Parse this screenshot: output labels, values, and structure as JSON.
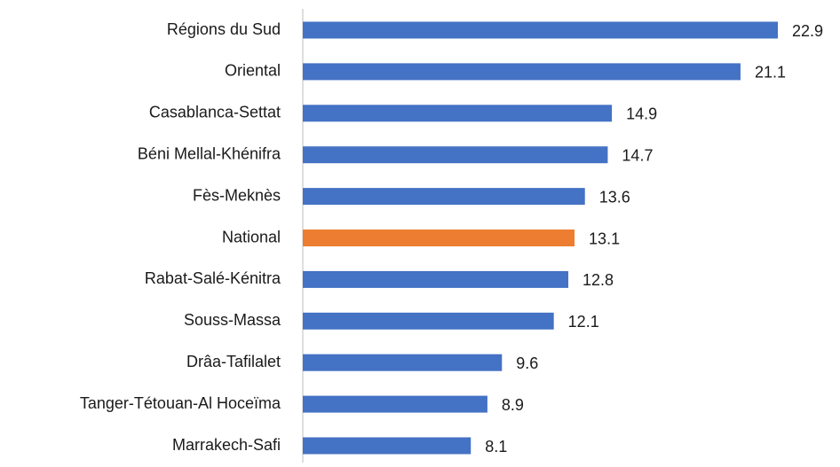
{
  "chart_data": {
    "type": "bar",
    "orientation": "horizontal",
    "categories": [
      "Régions du Sud",
      "Oriental",
      "Casablanca-Settat",
      "Béni Mellal-Khénifra",
      "Fès-Meknès",
      "National",
      "Rabat-Salé-Kénitra",
      "Souss-Massa",
      "Drâa-Tafilalet",
      "Tanger-Tétouan-Al Hoceïma",
      "Marrakech-Safi"
    ],
    "values": [
      22.9,
      21.1,
      14.9,
      14.7,
      13.6,
      13.1,
      12.8,
      12.1,
      9.6,
      8.9,
      8.1
    ],
    "colors": [
      "#4472c4",
      "#4472c4",
      "#4472c4",
      "#4472c4",
      "#4472c4",
      "#ed7d31",
      "#4472c4",
      "#4472c4",
      "#4472c4",
      "#4472c4",
      "#4472c4"
    ],
    "data_labels": true
  }
}
